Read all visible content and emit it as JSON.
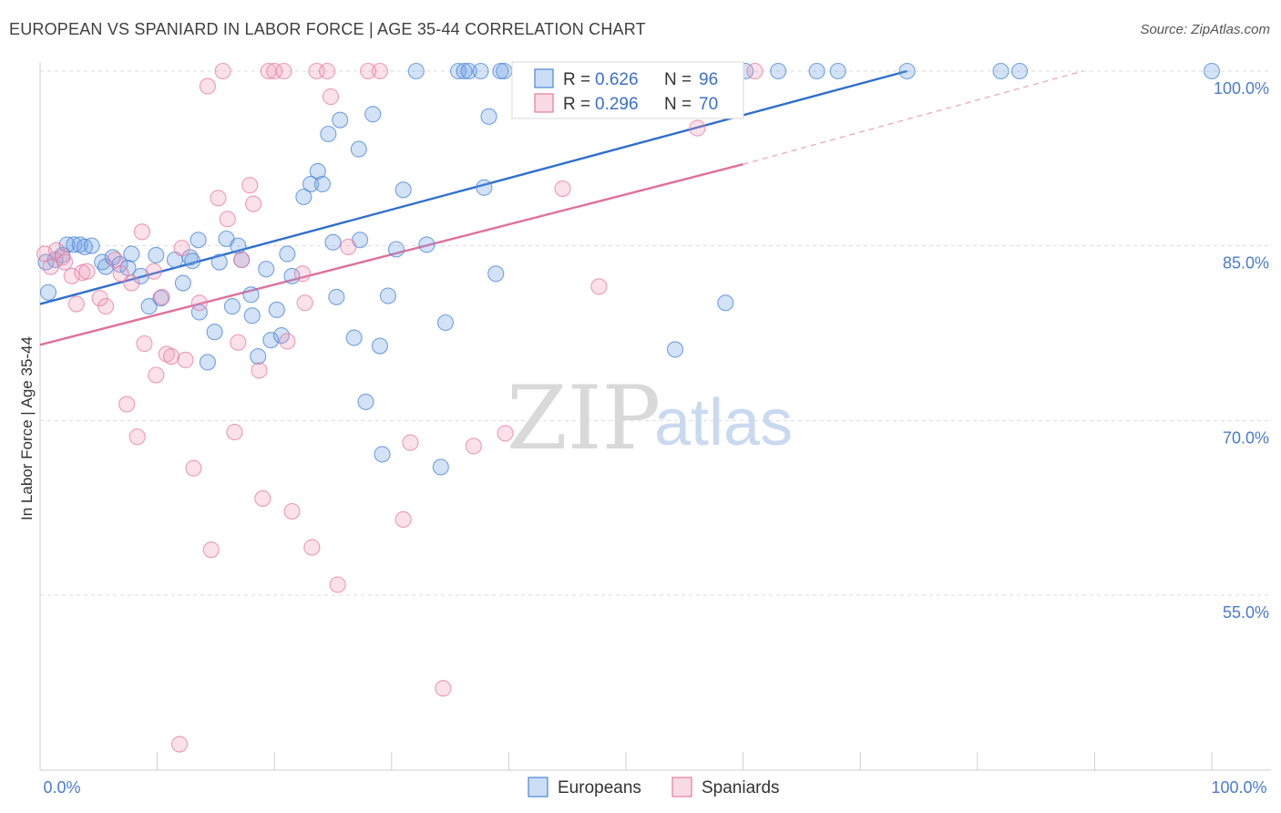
{
  "title": "EUROPEAN VS SPANIARD IN LABOR FORCE | AGE 35-44 CORRELATION CHART",
  "source": "Source: ZipAtlas.com",
  "colors": {
    "blue": "#4a86d8",
    "blue_fill": "rgba(110,160,230,0.30)",
    "blue_line": "#2f6fcf",
    "pink": "#e87ba0",
    "pink_fill": "rgba(240,150,180,0.28)",
    "pink_line": "#e0709a",
    "axis_label": "#4a7bd0",
    "grid": "#dcdcdc"
  },
  "legend_top": {
    "r_label": "R =",
    "n_label": "N =",
    "rows": [
      {
        "r": "0.626",
        "n": "96",
        "color": "blue"
      },
      {
        "r": "0.296",
        "n": "70",
        "color": "pink"
      }
    ]
  },
  "legend_bottom": [
    {
      "label": "Europeans",
      "color": "blue"
    },
    {
      "label": "Spaniards",
      "color": "pink"
    }
  ],
  "watermark": {
    "zip": "ZIP",
    "atlas": "atlas"
  },
  "chart_data": {
    "type": "scatter",
    "title": "EUROPEAN VS SPANIARD IN LABOR FORCE | AGE 35-44 CORRELATION CHART",
    "xlabel": "",
    "ylabel": "In Labor Force | Age 35-44",
    "xlim": [
      0,
      100
    ],
    "ylim": [
      40,
      102
    ],
    "x_tick_labels": [
      {
        "value": 0,
        "label": "0.0%"
      },
      {
        "value": 100,
        "label": "100.0%"
      }
    ],
    "y_tick_labels": [
      {
        "value": 100,
        "label": "100.0%"
      },
      {
        "value": 85,
        "label": "85.0%"
      },
      {
        "value": 70,
        "label": "70.0%"
      },
      {
        "value": 55,
        "label": "55.0%"
      }
    ],
    "grid": true,
    "legend_position": "bottom",
    "series": [
      {
        "name": "Europeans",
        "color": "blue",
        "R": 0.626,
        "N": 96,
        "trend": {
          "x": [
            0,
            74
          ],
          "y": [
            80.0,
            100.0
          ]
        },
        "points": [
          [
            0.5,
            83.6
          ],
          [
            0.7,
            81.0
          ],
          [
            1.3,
            83.8
          ],
          [
            1.9,
            84.2
          ],
          [
            2.3,
            85.1
          ],
          [
            2.9,
            85.1
          ],
          [
            3.4,
            85.1
          ],
          [
            3.8,
            84.9
          ],
          [
            4.4,
            85.0
          ],
          [
            5.3,
            83.6
          ],
          [
            5.6,
            83.2
          ],
          [
            6.2,
            84.0
          ],
          [
            6.8,
            83.4
          ],
          [
            7.5,
            83.1
          ],
          [
            7.8,
            84.3
          ],
          [
            8.6,
            82.4
          ],
          [
            9.3,
            79.8
          ],
          [
            9.9,
            84.2
          ],
          [
            10.3,
            80.5
          ],
          [
            11.5,
            83.8
          ],
          [
            12.2,
            81.8
          ],
          [
            12.8,
            84.0
          ],
          [
            13.0,
            83.7
          ],
          [
            13.5,
            85.5
          ],
          [
            13.6,
            79.3
          ],
          [
            14.3,
            75.0
          ],
          [
            14.9,
            77.6
          ],
          [
            15.3,
            83.6
          ],
          [
            15.9,
            85.6
          ],
          [
            16.4,
            79.8
          ],
          [
            16.9,
            85.0
          ],
          [
            17.2,
            83.8
          ],
          [
            18.0,
            80.8
          ],
          [
            18.1,
            79.0
          ],
          [
            18.6,
            75.5
          ],
          [
            19.3,
            83.0
          ],
          [
            19.7,
            76.9
          ],
          [
            20.2,
            79.5
          ],
          [
            20.6,
            77.3
          ],
          [
            21.1,
            84.3
          ],
          [
            21.5,
            82.4
          ],
          [
            22.5,
            89.2
          ],
          [
            23.1,
            90.3
          ],
          [
            23.7,
            91.4
          ],
          [
            24.1,
            90.3
          ],
          [
            24.6,
            94.6
          ],
          [
            25.0,
            85.3
          ],
          [
            25.3,
            80.6
          ],
          [
            25.6,
            95.8
          ],
          [
            26.8,
            77.1
          ],
          [
            27.2,
            93.3
          ],
          [
            27.3,
            85.5
          ],
          [
            27.8,
            71.6
          ],
          [
            28.4,
            96.3
          ],
          [
            29.0,
            76.4
          ],
          [
            29.2,
            67.1
          ],
          [
            29.7,
            80.7
          ],
          [
            30.4,
            84.7
          ],
          [
            31.0,
            89.8
          ],
          [
            32.1,
            100.0
          ],
          [
            33.0,
            85.1
          ],
          [
            34.2,
            66.0
          ],
          [
            34.6,
            78.4
          ],
          [
            35.7,
            100.0
          ],
          [
            36.2,
            100.0
          ],
          [
            36.6,
            100.0
          ],
          [
            37.6,
            100.0
          ],
          [
            37.9,
            90.0
          ],
          [
            38.3,
            96.1
          ],
          [
            38.9,
            82.6
          ],
          [
            39.3,
            100.0
          ],
          [
            39.6,
            100.0
          ],
          [
            41.4,
            100.0
          ],
          [
            41.9,
            100.0
          ],
          [
            42.5,
            100.0
          ],
          [
            43.0,
            100.0
          ],
          [
            44.0,
            100.0
          ],
          [
            46.8,
            100.0
          ],
          [
            48.4,
            100.0
          ],
          [
            49.0,
            100.0
          ],
          [
            50.7,
            100.0
          ],
          [
            52.6,
            100.0
          ],
          [
            54.2,
            76.1
          ],
          [
            58.1,
            99.4
          ],
          [
            58.5,
            80.1
          ],
          [
            63.0,
            100.0
          ],
          [
            66.3,
            100.0
          ],
          [
            68.1,
            100.0
          ],
          [
            74.0,
            100.0
          ],
          [
            82.0,
            100.0
          ],
          [
            83.6,
            100.0
          ],
          [
            100.0,
            100.0
          ],
          [
            55.6,
            100.0
          ],
          [
            57.8,
            100.0
          ],
          [
            60.2,
            100.0
          ],
          [
            45.0,
            100.0
          ]
        ]
      },
      {
        "name": "Spaniards",
        "color": "pink",
        "R": 0.296,
        "N": 70,
        "trend": {
          "x": [
            0,
            60
          ],
          "y": [
            76.5,
            92.0
          ]
        },
        "trend_dashed": {
          "x": [
            60,
            89
          ],
          "y": [
            92.0,
            100.0
          ]
        },
        "points": [
          [
            0.4,
            84.3
          ],
          [
            0.9,
            83.2
          ],
          [
            1.4,
            84.6
          ],
          [
            1.9,
            84.0
          ],
          [
            2.1,
            83.6
          ],
          [
            2.7,
            82.4
          ],
          [
            3.1,
            80.0
          ],
          [
            3.6,
            82.7
          ],
          [
            4.0,
            82.8
          ],
          [
            5.1,
            80.5
          ],
          [
            5.6,
            79.8
          ],
          [
            6.4,
            83.8
          ],
          [
            6.9,
            82.6
          ],
          [
            7.4,
            71.4
          ],
          [
            7.8,
            81.8
          ],
          [
            8.3,
            68.6
          ],
          [
            8.7,
            86.2
          ],
          [
            8.9,
            76.6
          ],
          [
            9.7,
            82.8
          ],
          [
            9.9,
            73.9
          ],
          [
            10.4,
            80.6
          ],
          [
            10.8,
            75.7
          ],
          [
            11.2,
            75.5
          ],
          [
            11.9,
            42.2
          ],
          [
            12.1,
            84.8
          ],
          [
            12.4,
            75.2
          ],
          [
            13.1,
            65.9
          ],
          [
            13.6,
            80.1
          ],
          [
            14.3,
            98.7
          ],
          [
            14.6,
            58.9
          ],
          [
            15.2,
            89.1
          ],
          [
            16.0,
            87.3
          ],
          [
            16.6,
            69.0
          ],
          [
            16.9,
            76.7
          ],
          [
            17.2,
            83.8
          ],
          [
            17.9,
            90.2
          ],
          [
            18.2,
            88.6
          ],
          [
            18.7,
            74.3
          ],
          [
            19.0,
            63.3
          ],
          [
            19.5,
            100.0
          ],
          [
            20.0,
            100.0
          ],
          [
            20.8,
            100.0
          ],
          [
            21.1,
            76.8
          ],
          [
            21.5,
            62.2
          ],
          [
            22.4,
            82.6
          ],
          [
            22.6,
            80.1
          ],
          [
            23.2,
            59.1
          ],
          [
            23.6,
            100.0
          ],
          [
            24.5,
            100.0
          ],
          [
            24.8,
            97.8
          ],
          [
            25.4,
            55.9
          ],
          [
            26.3,
            84.9
          ],
          [
            29.0,
            100.0
          ],
          [
            31.0,
            61.5
          ],
          [
            31.6,
            68.1
          ],
          [
            34.4,
            47.0
          ],
          [
            37.0,
            67.8
          ],
          [
            39.7,
            68.9
          ],
          [
            43.2,
            100.0
          ],
          [
            44.6,
            89.9
          ],
          [
            47.7,
            81.5
          ],
          [
            55.0,
            100.0
          ],
          [
            56.1,
            95.1
          ],
          [
            59.0,
            100.0
          ],
          [
            61.0,
            100.0
          ],
          [
            15.6,
            100.0
          ],
          [
            28.0,
            100.0
          ],
          [
            42.0,
            100.0
          ],
          [
            50.0,
            100.0
          ],
          [
            53.0,
            100.0
          ]
        ]
      }
    ]
  }
}
